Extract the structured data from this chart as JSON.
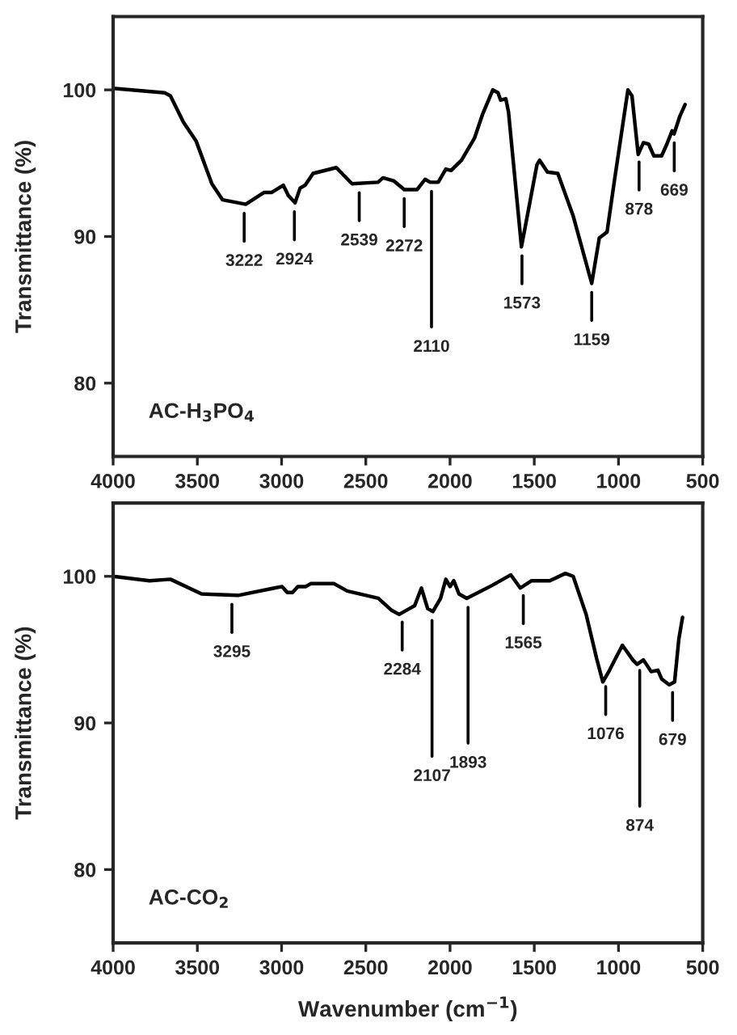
{
  "chart_data": [
    {
      "type": "line",
      "ylabel": "Transmittance (%)",
      "xlim": [
        4000,
        500
      ],
      "ylim": [
        75,
        105
      ],
      "xticks": [
        4000,
        3500,
        3000,
        2500,
        2000,
        1500,
        1000,
        500
      ],
      "yticks": [
        80,
        90,
        100
      ],
      "grid": false,
      "legend": false,
      "marker": "none",
      "line_style": "solid",
      "series": [
        {
          "color": "#000000",
          "x": [
            4000,
            3694,
            3660,
            3583,
            3507,
            3414,
            3350,
            3213,
            3105,
            3060,
            2990,
            2960,
            2920,
            2890,
            2860,
            2813,
            2675,
            2582,
            2428,
            2398,
            2335,
            2272,
            2195,
            2148,
            2118,
            2070,
            2025,
            1994,
            1932,
            1855,
            1808,
            1746,
            1715,
            1700,
            1669,
            1653,
            1576,
            1484,
            1468,
            1422,
            1360,
            1269,
            1159,
            1114,
            1068,
            1023,
            944,
            920,
            883,
            852,
            821,
            790,
            744,
            713,
            682,
            670,
            636,
            605
          ],
          "values": [
            100.1,
            99.8,
            99.6,
            97.8,
            96.5,
            93.6,
            92.5,
            92.2,
            93.0,
            93.0,
            93.5,
            92.8,
            92.3,
            93.3,
            93.5,
            94.3,
            94.7,
            93.6,
            93.7,
            94.0,
            93.8,
            93.2,
            93.2,
            93.9,
            93.7,
            93.7,
            94.6,
            94.5,
            95.2,
            96.7,
            98.3,
            100.0,
            99.8,
            99.3,
            99.4,
            98.5,
            89.3,
            94.9,
            95.2,
            94.4,
            94.3,
            91.4,
            86.8,
            89.9,
            90.3,
            93.9,
            100.0,
            99.6,
            95.6,
            96.4,
            96.3,
            95.5,
            95.5,
            96.3,
            97.2,
            97.0,
            98.2,
            99.0
          ]
        }
      ],
      "annotations": [
        "AC-H$_{3}$PO$_{4}$",
        {
          "text": "3222",
          "x": 3222,
          "y": 92.2
        },
        {
          "text": "2924",
          "x": 2924,
          "y": 92.3
        },
        {
          "text": "2539",
          "x": 2539,
          "y": 93.6
        },
        {
          "text": "2272",
          "x": 2272,
          "y": 93.2
        },
        {
          "text": "2110",
          "x": 2110,
          "y": 93.7
        },
        {
          "text": "1573",
          "x": 1573,
          "y": 89.3
        },
        {
          "text": "1159",
          "x": 1159,
          "y": 86.8
        },
        {
          "text": "878",
          "x": 878,
          "y": 95.7
        },
        {
          "text": "669",
          "x": 669,
          "y": 97.0
        }
      ]
    },
    {
      "type": "line",
      "ylabel": "Transmittance (%)",
      "xlabel": "Wavenumber (cm$^{−1}$)",
      "xlim": [
        4000,
        500
      ],
      "ylim": [
        75,
        105
      ],
      "xticks": [
        4000,
        3500,
        3000,
        2500,
        2000,
        1500,
        1000,
        500
      ],
      "yticks": [
        80,
        90,
        100
      ],
      "grid": false,
      "legend": false,
      "marker": "none",
      "line_style": "solid",
      "series": [
        {
          "color": "#000000",
          "x": [
            4000,
            3784,
            3660,
            3475,
            3259,
            3043,
            2997,
            2966,
            2935,
            2904,
            2858,
            2827,
            2688,
            2611,
            2426,
            2349,
            2302,
            2210,
            2170,
            2133,
            2102,
            2056,
            2025,
            2000,
            1978,
            1947,
            1901,
            1747,
            1639,
            1583,
            1516,
            1408,
            1315,
            1269,
            1192,
            1130,
            1093,
            1053,
            977,
            915,
            890,
            852,
            806,
            766,
            744,
            698,
            667,
            642,
            620
          ],
          "values": [
            100.0,
            99.7,
            99.8,
            98.8,
            98.7,
            99.2,
            99.3,
            98.9,
            98.9,
            99.3,
            99.3,
            99.5,
            99.5,
            99.0,
            98.5,
            97.7,
            97.4,
            98.0,
            99.2,
            97.8,
            97.6,
            98.5,
            99.8,
            99.3,
            99.7,
            98.8,
            98.5,
            99.4,
            100.1,
            99.2,
            99.7,
            99.7,
            100.2,
            100.0,
            97.4,
            94.4,
            92.8,
            93.6,
            95.3,
            94.3,
            94.0,
            94.3,
            93.5,
            93.6,
            93.0,
            92.6,
            92.8,
            95.7,
            97.2
          ]
        }
      ],
      "annotations": [
        "AC-CO$_{2}$",
        {
          "text": "3295",
          "x": 3295,
          "y": 98.7
        },
        {
          "text": "2284",
          "x": 2284,
          "y": 97.5
        },
        {
          "text": "2107",
          "x": 2107,
          "y": 97.6
        },
        {
          "text": "1893",
          "x": 1893,
          "y": 98.5
        },
        {
          "text": "1565",
          "x": 1565,
          "y": 99.3
        },
        {
          "text": "1076",
          "x": 1076,
          "y": 93.1
        },
        {
          "text": "874",
          "x": 874,
          "y": 94.2
        },
        {
          "text": "679",
          "x": 679,
          "y": 92.7
        }
      ]
    }
  ]
}
